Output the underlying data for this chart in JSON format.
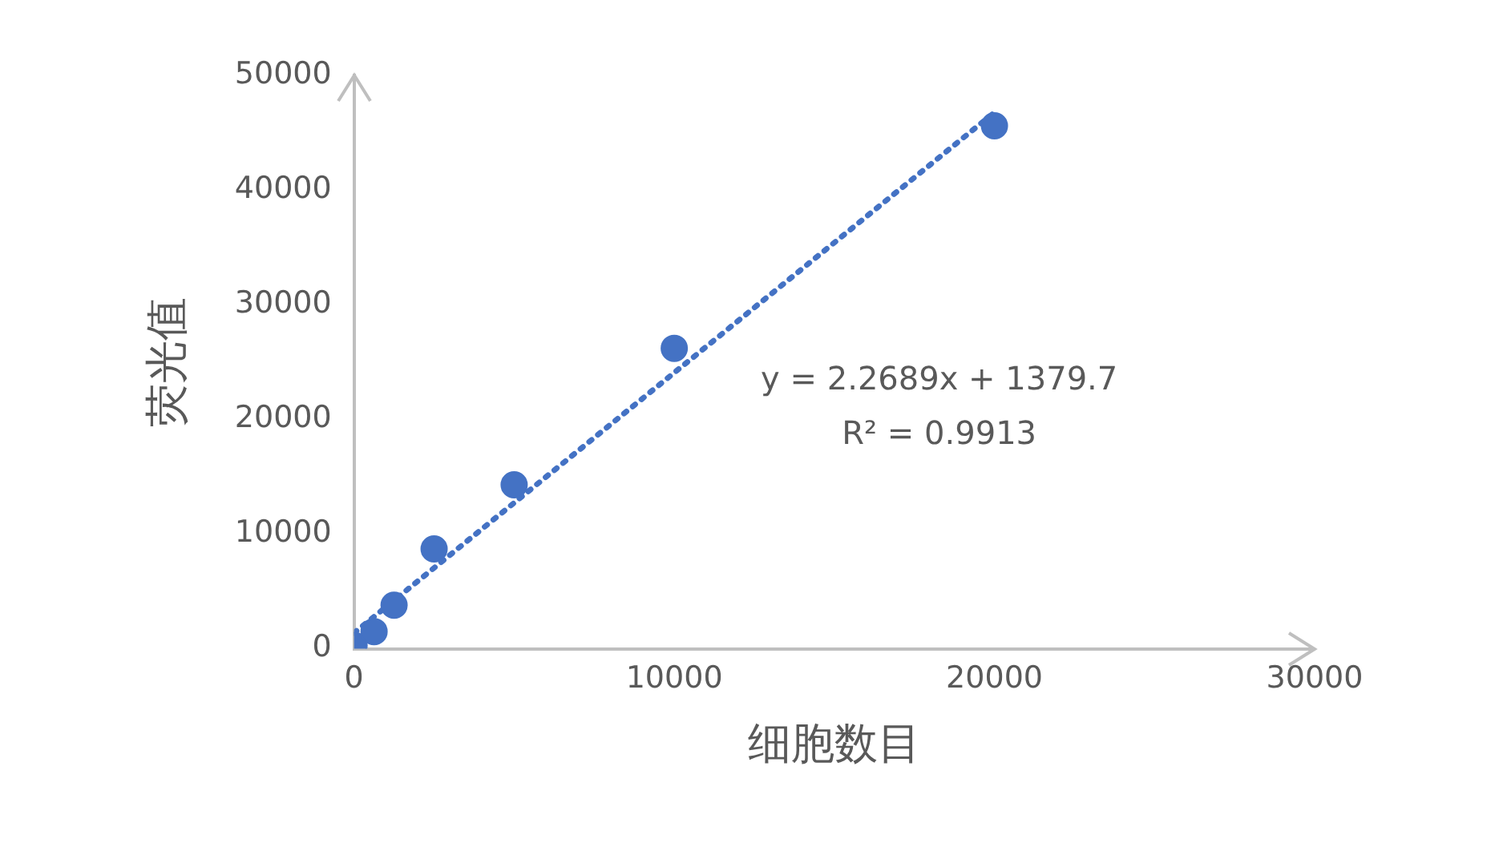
{
  "chart_data": {
    "type": "scatter",
    "xlabel": "细胞数目",
    "ylabel": "荧光值",
    "xlim": [
      0,
      30000
    ],
    "xticks": [
      0,
      10000,
      20000,
      30000
    ],
    "ylim": [
      0,
      50000
    ],
    "yticks": [
      0,
      10000,
      20000,
      30000,
      40000,
      50000
    ],
    "grid": false,
    "legend": false,
    "series": [
      {
        "marker": "circle",
        "color": "#4472c4",
        "x": [
          0,
          625,
          1250,
          2500,
          5000,
          10000,
          20000
        ],
        "values": [
          300,
          1500,
          3800,
          8700,
          14300,
          26200,
          45600
        ]
      },
      {
        "type": "line",
        "marker": "none",
        "color": "#4472c4",
        "line_style": "dotted",
        "x": [
          0,
          20000
        ],
        "values": [
          1380,
          46760
        ]
      }
    ],
    "annotations": [
      "y = 2.2689x + 1379.7",
      "R² = 0.9913"
    ]
  }
}
